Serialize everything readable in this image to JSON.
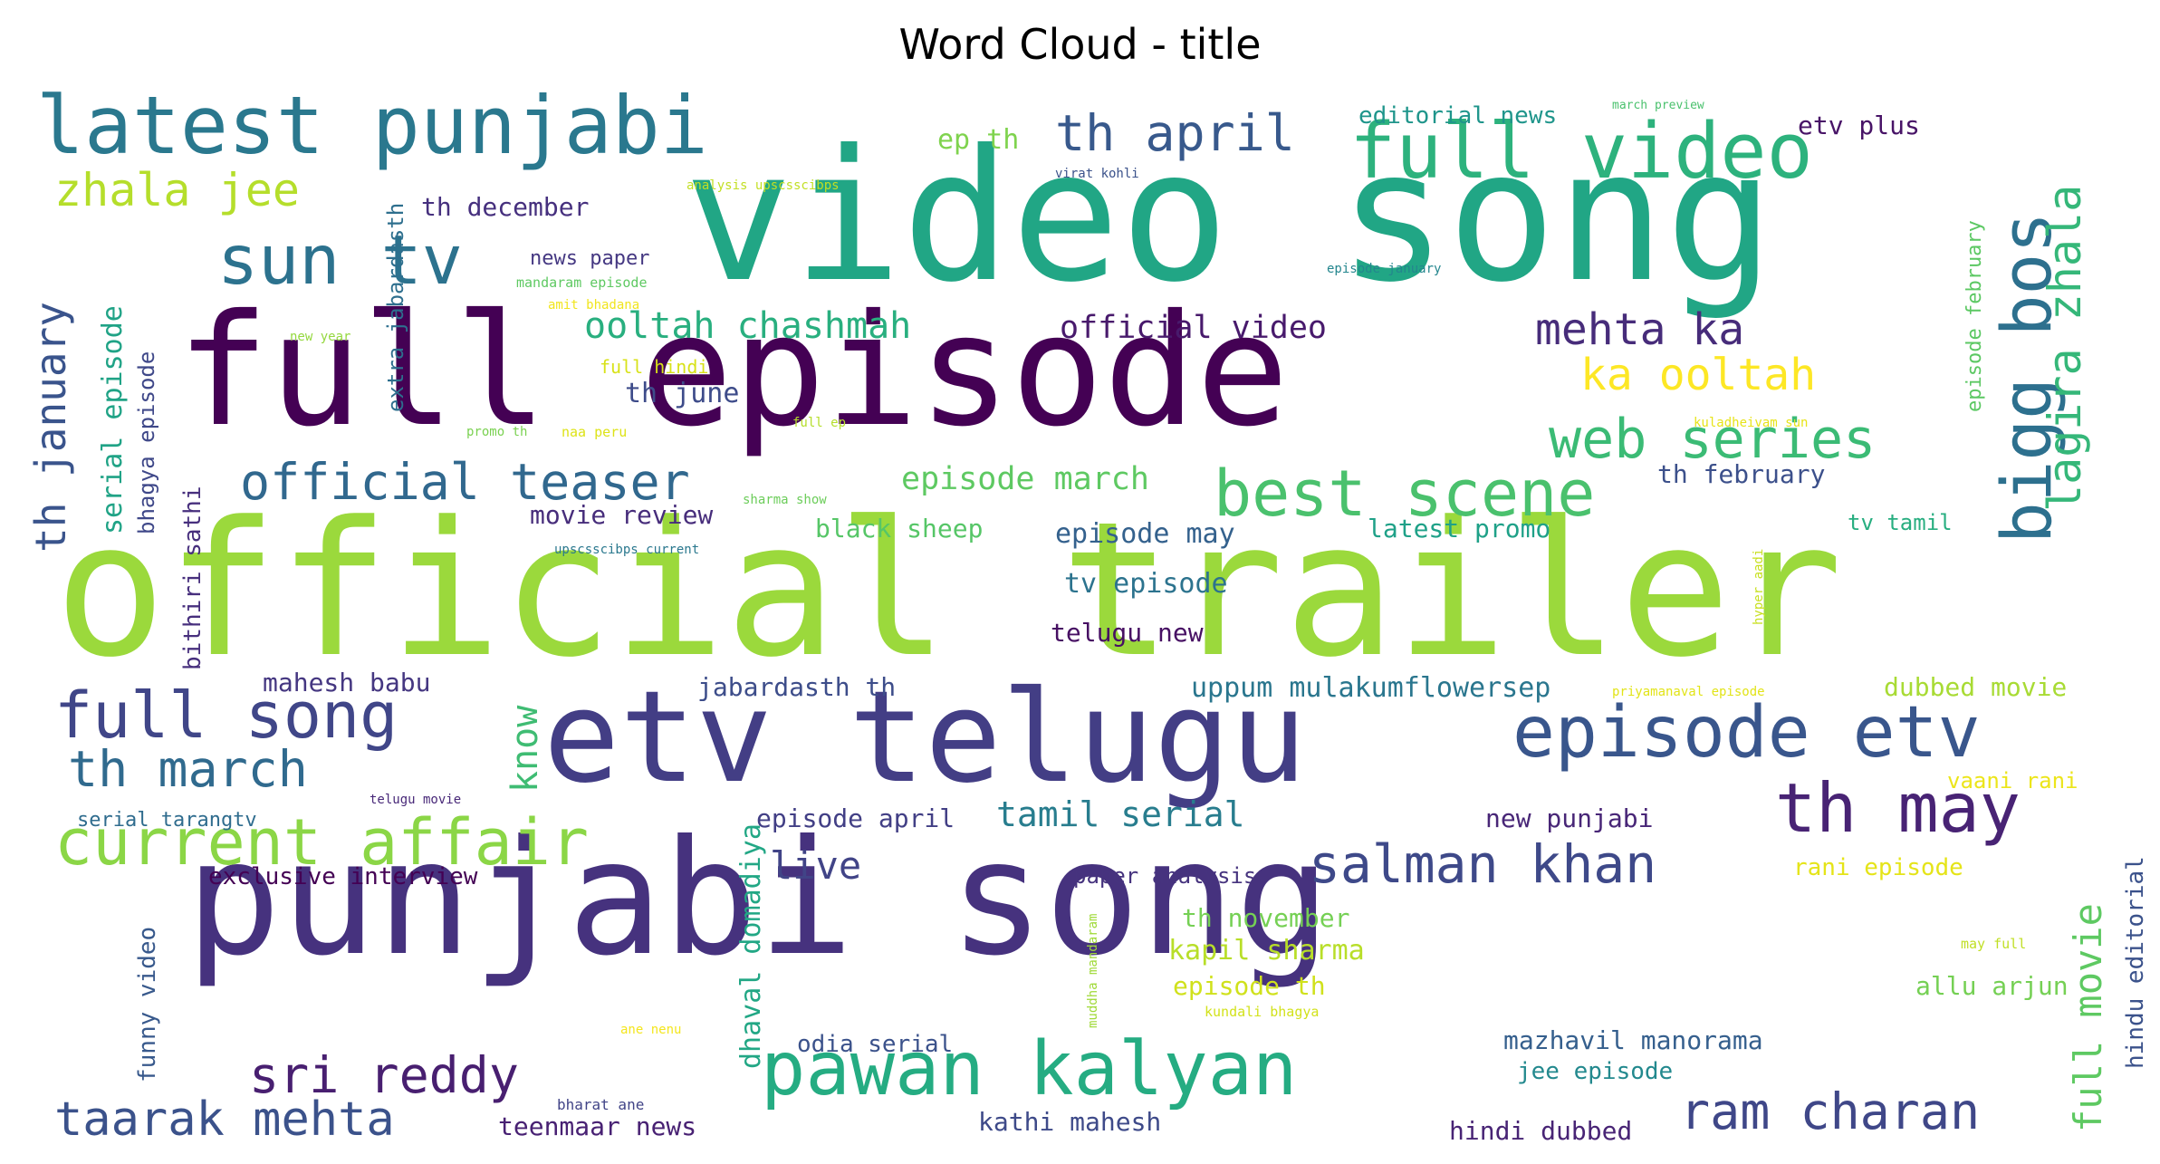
{
  "chart_data": {
    "type": "wordcloud",
    "title": "Word Cloud - title",
    "background": "#ffffff",
    "colormap": "viridis",
    "words": [
      {
        "text": "official trailer",
        "color": "#9bd93c"
      },
      {
        "text": "video song",
        "color": "#21a685"
      },
      {
        "text": "full episode",
        "color": "#440154"
      },
      {
        "text": "punjabi song",
        "color": "#46327e"
      },
      {
        "text": "etv telugu",
        "color": "#433e85"
      },
      {
        "text": "latest punjabi",
        "color": "#2a788e"
      },
      {
        "text": "full video",
        "color": "#2db27d"
      },
      {
        "text": "episode etv",
        "color": "#39568c"
      },
      {
        "text": "pawan kalyan",
        "color": "#25ac82"
      },
      {
        "text": "th may",
        "color": "#482374"
      },
      {
        "text": "current affair",
        "color": "#8bd646"
      },
      {
        "text": "best scene",
        "color": "#4ac16d"
      },
      {
        "text": "web series",
        "color": "#3bbb75"
      },
      {
        "text": "bigg bos",
        "color": "#2d708e"
      },
      {
        "text": "salman khan",
        "color": "#3e4989"
      },
      {
        "text": "sun tv",
        "color": "#2c728e"
      },
      {
        "text": "full song",
        "color": "#404688"
      },
      {
        "text": "th april",
        "color": "#38598c"
      },
      {
        "text": "sri reddy",
        "color": "#481f70"
      },
      {
        "text": "taarak mehta",
        "color": "#3b528b"
      },
      {
        "text": "ram charan",
        "color": "#3f4788"
      },
      {
        "text": "official teaser",
        "color": "#31688e"
      },
      {
        "text": "th march",
        "color": "#306a8e"
      },
      {
        "text": "lagira zhala",
        "color": "#35b779"
      },
      {
        "text": "zhala jee",
        "color": "#b5de2b"
      },
      {
        "text": "ka ooltah",
        "color": "#fde725"
      },
      {
        "text": "mehta ka",
        "color": "#472c7a"
      },
      {
        "text": "th january",
        "color": "#3a548c"
      },
      {
        "text": "ooltah chashmah",
        "color": "#29af7f"
      },
      {
        "text": "full movie",
        "color": "#5ec962"
      },
      {
        "text": "tamil serial",
        "color": "#287d8e"
      },
      {
        "text": "live",
        "color": "#414487"
      },
      {
        "text": "official video",
        "color": "#481a6c"
      },
      {
        "text": "episode march",
        "color": "#5ec962"
      },
      {
        "text": "know",
        "color": "#3fbc73"
      },
      {
        "text": "kapil sharma",
        "color": "#b8de29"
      },
      {
        "text": "dhaval domadiya",
        "color": "#22a785"
      },
      {
        "text": "serial episode",
        "color": "#20a386"
      },
      {
        "text": "th june",
        "color": "#3e4c8a"
      },
      {
        "text": "th december",
        "color": "#46307e"
      },
      {
        "text": "movie review",
        "color": "#472d7b"
      },
      {
        "text": "black sheep",
        "color": "#56c667"
      },
      {
        "text": "episode may",
        "color": "#34618d"
      },
      {
        "text": "latest promo",
        "color": "#1fa188"
      },
      {
        "text": "tv episode",
        "color": "#2c738e"
      },
      {
        "text": "telugu new",
        "color": "#471063"
      },
      {
        "text": "th february",
        "color": "#3c508b"
      },
      {
        "text": "tv tamil",
        "color": "#28ae80"
      },
      {
        "text": "mahesh babu",
        "color": "#453781"
      },
      {
        "text": "jabardasth th",
        "color": "#3d4d8a"
      },
      {
        "text": "uppum mulakumflowersep",
        "color": "#2a768e"
      },
      {
        "text": "dubbed movie",
        "color": "#a8db34"
      },
      {
        "text": "episode april",
        "color": "#423f85"
      },
      {
        "text": "exclusive interview",
        "color": "#440154"
      },
      {
        "text": "paper analysis",
        "color": "#46337e"
      },
      {
        "text": "new punjabi",
        "color": "#482677"
      },
      {
        "text": "th november",
        "color": "#75d054"
      },
      {
        "text": "episode th",
        "color": "#d0e11c"
      },
      {
        "text": "odia serial",
        "color": "#3b528b"
      },
      {
        "text": "mazhavil manorama",
        "color": "#355f8d"
      },
      {
        "text": "jee episode",
        "color": "#23898e"
      },
      {
        "text": "teenmaar news",
        "color": "#482173"
      },
      {
        "text": "kathi mahesh",
        "color": "#3e4a89"
      },
      {
        "text": "hindi dubbed",
        "color": "#482475"
      },
      {
        "text": "allu arjun",
        "color": "#75d054"
      },
      {
        "text": "rani episode",
        "color": "#e5e419"
      },
      {
        "text": "vaani rani",
        "color": "#ece51b"
      },
      {
        "text": "hindu editorial",
        "color": "#3b528b"
      },
      {
        "text": "funny video",
        "color": "#38598c"
      },
      {
        "text": "bhagya episode",
        "color": "#3f4889"
      },
      {
        "text": "bithiri sathi",
        "color": "#472f7d"
      },
      {
        "text": "extra jabardasth",
        "color": "#2e6f8e"
      },
      {
        "text": "news paper",
        "color": "#453882"
      },
      {
        "text": "ep th",
        "color": "#7fd34e"
      },
      {
        "text": "editorial news",
        "color": "#1f958b"
      },
      {
        "text": "etv plus",
        "color": "#481467"
      },
      {
        "text": "episode february",
        "color": "#5cc863"
      },
      {
        "text": "serial tarangtv",
        "color": "#2f6c8e"
      },
      {
        "text": "full hindi",
        "color": "#d8e219"
      },
      {
        "text": "amit bhadana",
        "color": "#f1e51d"
      },
      {
        "text": "mandaram episode",
        "color": "#5ec962"
      },
      {
        "text": "analysis upscsscibps",
        "color": "#c2df23"
      },
      {
        "text": "virat kohli",
        "color": "#3b528b"
      },
      {
        "text": "march preview",
        "color": "#4ac16d"
      },
      {
        "text": "episode january",
        "color": "#24868e"
      },
      {
        "text": "new year",
        "color": "#95d840"
      },
      {
        "text": "promo th",
        "color": "#7ad151"
      },
      {
        "text": "naa peru",
        "color": "#dde318"
      },
      {
        "text": "full ep",
        "color": "#b5de2b"
      },
      {
        "text": "kuladheivam sun",
        "color": "#e7e419"
      },
      {
        "text": "sharma show",
        "color": "#6ccd5a"
      },
      {
        "text": "upscsscibps current",
        "color": "#2a788e"
      },
      {
        "text": "hyper aadi",
        "color": "#c8e020"
      },
      {
        "text": "priyamanaval episode",
        "color": "#e2e418"
      },
      {
        "text": "telugu movie",
        "color": "#482878"
      },
      {
        "text": "may full",
        "color": "#c0df25"
      },
      {
        "text": "muddha mandaram",
        "color": "#a0da39"
      },
      {
        "text": "kundali bhagya",
        "color": "#d2e21b"
      },
      {
        "text": "ane nenu",
        "color": "#f4e61e"
      },
      {
        "text": "bharat ane",
        "color": "#414487"
      }
    ]
  }
}
